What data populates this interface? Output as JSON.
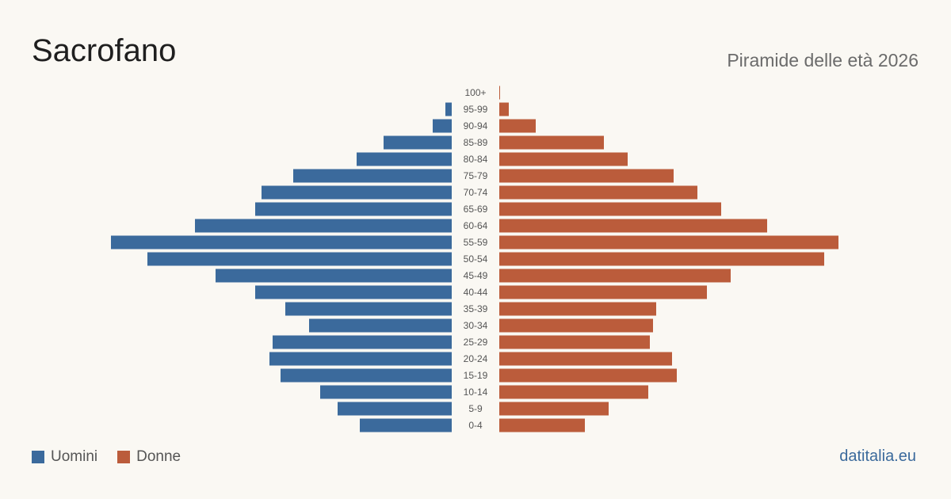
{
  "header": {
    "title": "Sacrofano",
    "subtitle": "Piramide delle età 2026"
  },
  "legend": {
    "items": [
      {
        "label": "Uomini",
        "color": "#3b6a9c"
      },
      {
        "label": "Donne",
        "color": "#bb5c3b"
      }
    ]
  },
  "footer": {
    "brand": "datitalia.eu",
    "brand_color": "#3b6a9c"
  },
  "chart_data": {
    "type": "bar",
    "orientation": "horizontal-pyramid",
    "categories": [
      "100+",
      "95-99",
      "90-94",
      "85-89",
      "80-84",
      "75-79",
      "70-74",
      "65-69",
      "60-64",
      "55-59",
      "50-54",
      "45-49",
      "40-44",
      "35-39",
      "30-34",
      "25-29",
      "20-24",
      "15-19",
      "10-14",
      "5-9",
      "0-4"
    ],
    "series": [
      {
        "name": "Uomini",
        "color": "#3b6a9c",
        "values": [
          0,
          4,
          12,
          43,
          60,
          100,
          120,
          124,
          162,
          215,
          192,
          149,
          124,
          105,
          90,
          113,
          115,
          108,
          83,
          72,
          58
        ]
      },
      {
        "name": "Donne",
        "color": "#bb5c3b",
        "values": [
          0.5,
          6,
          23,
          66,
          81,
          110,
          125,
          140,
          169,
          214,
          205,
          146,
          131,
          99,
          97,
          95,
          109,
          112,
          94,
          69,
          54
        ]
      }
    ]
  }
}
